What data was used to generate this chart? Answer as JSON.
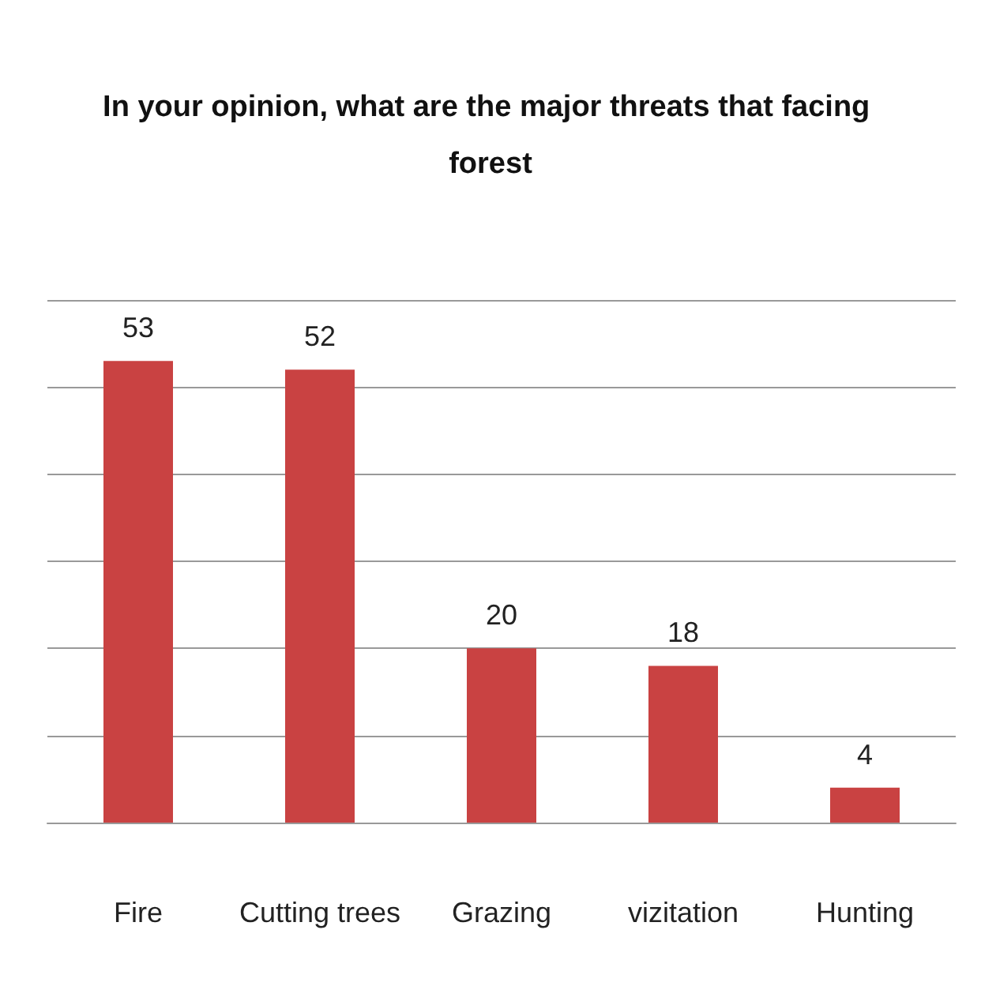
{
  "chart_data": {
    "type": "bar",
    "title": "In your opinion, what are the major threats that facing forest",
    "categories": [
      "Fire",
      "Cutting trees",
      "Grazing",
      "vizitation",
      "Hunting"
    ],
    "values": [
      53,
      52,
      20,
      18,
      4
    ],
    "color": "#c94242",
    "ylim": [
      0,
      60
    ],
    "yticks": [
      {
        "value": 0,
        "label": null
      },
      {
        "value": 10,
        "label": null
      },
      {
        "value": 20,
        "label": null
      },
      {
        "value": 30,
        "label": null
      },
      {
        "value": 40,
        "label": null
      },
      {
        "value": 50,
        "label": null
      },
      {
        "value": 60,
        "label": null
      }
    ],
    "grid": "y",
    "tick_labels": "x",
    "data_labels": true
  }
}
